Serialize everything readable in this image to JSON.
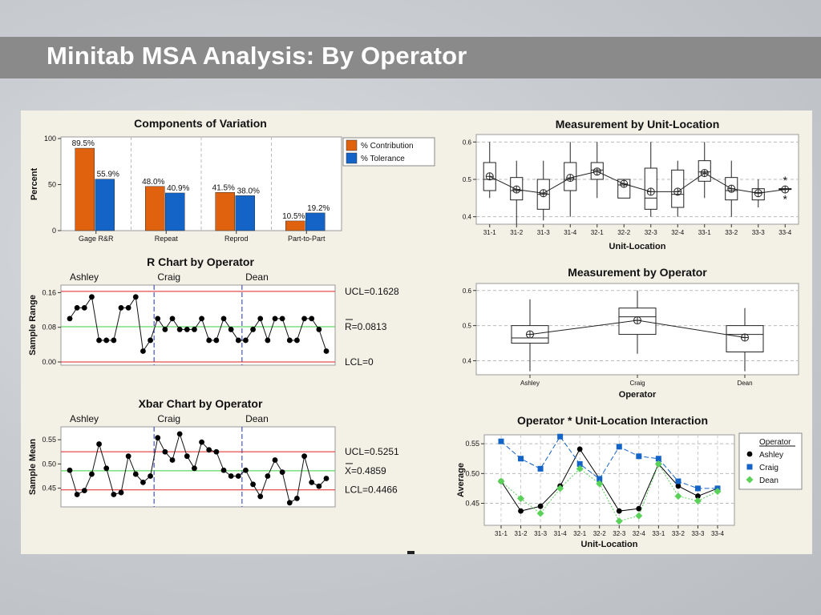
{
  "page": {
    "title": "Minitab MSA Analysis:  By Operator"
  },
  "colors": {
    "contribution": "#e0620e",
    "tolerance": "#1464c8",
    "control_limit": "#e02020",
    "center_line": "#3ccc3c",
    "divider": "#2030c0",
    "ashley": "#000000",
    "craig": "#1464c8",
    "dean": "#5ad25a"
  },
  "chart_data": [
    {
      "id": "components",
      "type": "bar",
      "title": "Components of Variation",
      "ylabel": "Percent",
      "xlabel": "",
      "ylim": [
        0,
        100
      ],
      "yticks": [
        0,
        50,
        100
      ],
      "categories": [
        "Gage R&R",
        "Repeat",
        "Reprod",
        "Part-to-Part"
      ],
      "series": [
        {
          "name": "% Contribution",
          "values": [
            89.5,
            48.0,
            41.5,
            10.5
          ],
          "labels": [
            "89.5%",
            "48.0%",
            "41.5%",
            "10.5%"
          ]
        },
        {
          "name": "% Tolerance",
          "values": [
            55.9,
            40.9,
            38.0,
            19.2
          ],
          "labels": [
            "55.9%",
            "40.9%",
            "38.0%",
            "19.2%"
          ]
        }
      ]
    },
    {
      "id": "rchart",
      "type": "line",
      "title": "R Chart by Operator",
      "ylabel": "Sample Range",
      "ylim": [
        0,
        0.17
      ],
      "yticks": [
        0.0,
        0.08,
        0.16
      ],
      "ytick_labels": [
        "0.00",
        "0.08",
        "0.16"
      ],
      "groups": [
        "Ashley",
        "Craig",
        "Dean"
      ],
      "values": [
        0.1,
        0.125,
        0.125,
        0.15,
        0.05,
        0.05,
        0.05,
        0.125,
        0.125,
        0.15,
        0.025,
        0.05,
        0.1,
        0.075,
        0.1,
        0.075,
        0.075,
        0.075,
        0.1,
        0.05,
        0.05,
        0.1,
        0.075,
        0.05,
        0.05,
        0.075,
        0.1,
        0.05,
        0.1,
        0.1,
        0.05,
        0.05,
        0.1,
        0.1,
        0.075,
        0.025
      ],
      "ucl": 0.1628,
      "center": 0.0813,
      "lcl": 0,
      "ucl_label": "UCL=0.1628",
      "center_label": "R=0.0813",
      "lcl_label": "LCL=0"
    },
    {
      "id": "xbar",
      "type": "line",
      "title": "Xbar Chart by Operator",
      "ylabel": "Sample Mean",
      "ylim": [
        0.418,
        0.57
      ],
      "yticks": [
        0.45,
        0.5,
        0.55
      ],
      "ytick_labels": [
        "0.45",
        "0.50",
        "0.55"
      ],
      "groups": [
        "Ashley",
        "Craig",
        "Dean"
      ],
      "values": [
        0.487,
        0.437,
        0.445,
        0.479,
        0.541,
        0.491,
        0.437,
        0.441,
        0.516,
        0.479,
        0.462,
        0.475,
        0.554,
        0.525,
        0.508,
        0.562,
        0.516,
        0.491,
        0.545,
        0.529,
        0.525,
        0.487,
        0.475,
        0.475,
        0.487,
        0.458,
        0.433,
        0.475,
        0.508,
        0.483,
        0.42,
        0.429,
        0.516,
        0.462,
        0.454,
        0.47
      ],
      "ucl": 0.5251,
      "center": 0.4859,
      "lcl": 0.4466,
      "ucl_label": "UCL=0.5251",
      "center_label": "X=0.4859",
      "lcl_label": "LCL=0.4466"
    },
    {
      "id": "by_unit",
      "type": "box",
      "title": "Measurement by Unit-Location",
      "xlabel": "Unit-Location",
      "ylim": [
        0.38,
        0.62
      ],
      "yticks": [
        0.4,
        0.5,
        0.6
      ],
      "ytick_labels": [
        "0.4",
        "0.5",
        "0.6"
      ],
      "categories": [
        "31-1",
        "31-2",
        "31-3",
        "31-4",
        "32-1",
        "32-2",
        "32-3",
        "32-4",
        "33-1",
        "33-2",
        "33-3",
        "33-4"
      ],
      "boxes": [
        {
          "min": 0.45,
          "q1": 0.47,
          "median": 0.5,
          "q3": 0.545,
          "max": 0.6,
          "mean": 0.508
        },
        {
          "min": 0.38,
          "q1": 0.445,
          "median": 0.47,
          "q3": 0.505,
          "max": 0.55,
          "mean": 0.473
        },
        {
          "min": 0.39,
          "q1": 0.42,
          "median": 0.46,
          "q3": 0.5,
          "max": 0.55,
          "mean": 0.463
        },
        {
          "min": 0.4,
          "q1": 0.47,
          "median": 0.5,
          "q3": 0.545,
          "max": 0.6,
          "mean": 0.504
        },
        {
          "min": 0.45,
          "q1": 0.5,
          "median": 0.525,
          "q3": 0.545,
          "max": 0.6,
          "mean": 0.521
        },
        {
          "min": 0.45,
          "q1": 0.45,
          "median": 0.485,
          "q3": 0.5,
          "max": 0.5,
          "mean": 0.488
        },
        {
          "min": 0.4,
          "q1": 0.42,
          "median": 0.45,
          "q3": 0.53,
          "max": 0.6,
          "mean": 0.467
        },
        {
          "min": 0.4,
          "q1": 0.425,
          "median": 0.46,
          "q3": 0.525,
          "max": 0.55,
          "mean": 0.467
        },
        {
          "min": 0.45,
          "q1": 0.495,
          "median": 0.52,
          "q3": 0.55,
          "max": 0.6,
          "mean": 0.517
        },
        {
          "min": 0.4,
          "q1": 0.445,
          "median": 0.47,
          "q3": 0.505,
          "max": 0.55,
          "mean": 0.475
        },
        {
          "min": 0.425,
          "q1": 0.445,
          "median": 0.465,
          "q3": 0.475,
          "max": 0.5,
          "mean": 0.463
        },
        {
          "min": 0.475,
          "q1": 0.475,
          "median": 0.475,
          "q3": 0.475,
          "max": 0.475,
          "mean": 0.473,
          "outliers": [
            0.5,
            0.45
          ]
        }
      ]
    },
    {
      "id": "by_operator",
      "type": "box",
      "title": "Measurement by Operator",
      "xlabel": "Operator",
      "ylim": [
        0.36,
        0.62
      ],
      "yticks": [
        0.4,
        0.5,
        0.6
      ],
      "ytick_labels": [
        "0.4",
        "0.5",
        "0.6"
      ],
      "categories": [
        "Ashley",
        "Craig",
        "Dean"
      ],
      "boxes": [
        {
          "min": 0.37,
          "q1": 0.45,
          "median": 0.465,
          "q3": 0.5,
          "max": 0.575,
          "mean": 0.475
        },
        {
          "min": 0.42,
          "q1": 0.475,
          "median": 0.525,
          "q3": 0.55,
          "max": 0.6,
          "mean": 0.515
        },
        {
          "min": 0.37,
          "q1": 0.425,
          "median": 0.475,
          "q3": 0.5,
          "max": 0.55,
          "mean": 0.466
        }
      ]
    },
    {
      "id": "interaction",
      "type": "line",
      "title": "Operator * Unit-Location Interaction",
      "ylabel": "Average",
      "xlabel": "Unit-Location",
      "ylim": [
        0.413,
        0.565
      ],
      "yticks": [
        0.45,
        0.5,
        0.55
      ],
      "ytick_labels": [
        "0.45",
        "0.50",
        "0.55"
      ],
      "categories": [
        "31-1",
        "31-2",
        "31-3",
        "31-4",
        "32-1",
        "32-2",
        "32-3",
        "32-4",
        "33-1",
        "33-2",
        "33-3",
        "33-4"
      ],
      "legend_title": "Operator",
      "series": [
        {
          "name": "Ashley",
          "marker": "circle",
          "values": [
            0.487,
            0.437,
            0.445,
            0.479,
            0.541,
            0.491,
            0.437,
            0.441,
            0.516,
            0.479,
            0.462,
            0.475
          ]
        },
        {
          "name": "Craig",
          "marker": "square",
          "values": [
            0.554,
            0.525,
            0.508,
            0.562,
            0.516,
            0.491,
            0.545,
            0.529,
            0.525,
            0.487,
            0.475,
            0.475
          ]
        },
        {
          "name": "Dean",
          "marker": "diamond",
          "values": [
            0.487,
            0.458,
            0.433,
            0.475,
            0.508,
            0.483,
            0.42,
            0.429,
            0.516,
            0.462,
            0.454,
            0.47
          ]
        }
      ]
    }
  ]
}
